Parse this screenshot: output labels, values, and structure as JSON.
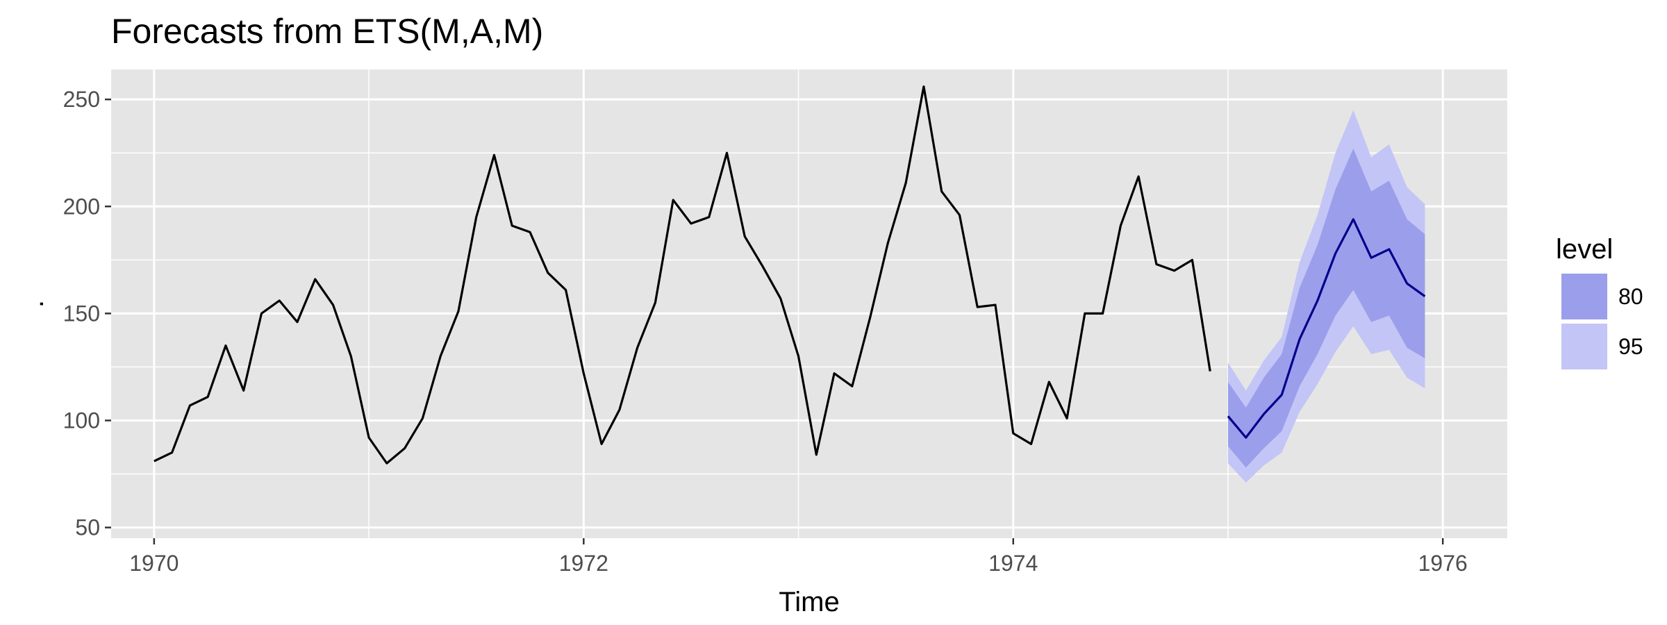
{
  "chart_data": {
    "type": "line",
    "title": "Forecasts from ETS(M,A,M)",
    "xlabel": "Time",
    "ylabel": ".",
    "xlim": [
      1969.8,
      1976.3
    ],
    "ylim": [
      45,
      264
    ],
    "x_ticks": [
      1970,
      1972,
      1974,
      1976
    ],
    "y_ticks": [
      50,
      100,
      150,
      200,
      250
    ],
    "grid": true,
    "legend": {
      "title": "level",
      "position": "right",
      "entries": [
        {
          "label": "80",
          "color": "#9b9eea"
        },
        {
          "label": "95",
          "color": "#c3c5f6"
        }
      ]
    },
    "colors": {
      "panel": "#e5e5e5",
      "grid_major": "#ffffff",
      "history_line": "#000000",
      "forecast_line": "#00008b",
      "band_80": "#9b9eea",
      "band_95": "#c3c5f6"
    },
    "history": {
      "start": 1970,
      "frequency": 12,
      "values": [
        81,
        85,
        107,
        111,
        135,
        114,
        150,
        156,
        146,
        166,
        154,
        130,
        92,
        80,
        87,
        101,
        130,
        151,
        195,
        224,
        191,
        188,
        169,
        161,
        122,
        89,
        105,
        134,
        155,
        203,
        192,
        195,
        225,
        186,
        172,
        157,
        130,
        84,
        122,
        116,
        148,
        183,
        211,
        256,
        207,
        196,
        153,
        154,
        94,
        89,
        118,
        101,
        150,
        150,
        191,
        214,
        173,
        170,
        175,
        123
      ]
    },
    "forecast": {
      "start": 1975,
      "frequency": 12,
      "mean": [
        102,
        92,
        103,
        112,
        138,
        156,
        178,
        194,
        176,
        180,
        164,
        158
      ],
      "lo80": [
        88,
        78,
        87,
        95,
        116,
        131,
        149,
        161,
        146,
        149,
        134,
        129
      ],
      "hi80": [
        118,
        106,
        120,
        131,
        162,
        182,
        208,
        227,
        207,
        212,
        194,
        187
      ],
      "lo95": [
        80,
        71,
        79,
        85,
        104,
        117,
        132,
        144,
        131,
        133,
        120,
        115
      ],
      "hi95": [
        127,
        114,
        128,
        139,
        174,
        196,
        225,
        245,
        223,
        229,
        209,
        201
      ]
    }
  }
}
